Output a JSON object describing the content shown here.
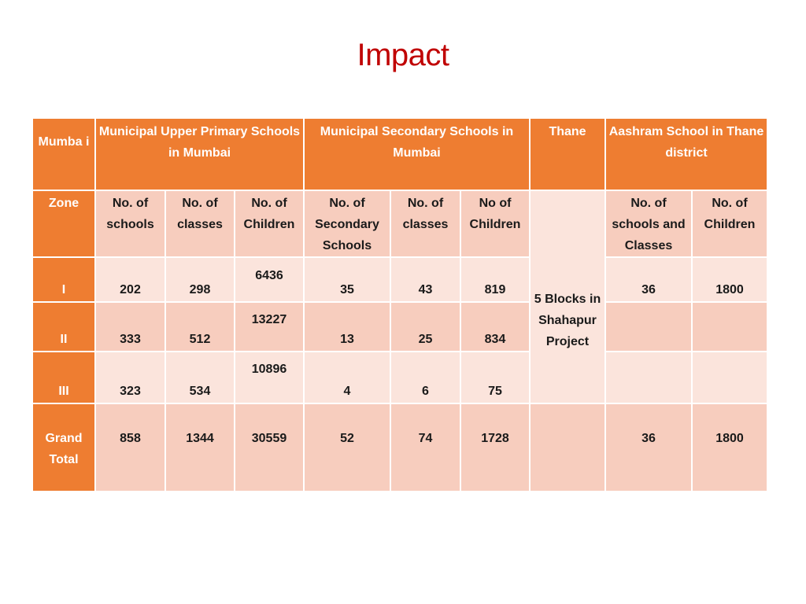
{
  "title": "Impact",
  "header": {
    "col0": "Mumba i",
    "group1": "Municipal Upper Primary Schools in  Mumbai",
    "group2": "Municipal Secondary  Schools in Mumbai",
    "group3": "Thane",
    "group4": "Aashram School in Thane district"
  },
  "subheader": {
    "zone": "Zone",
    "c1": "No. of schools",
    "c2": "No. of classes",
    "c3": "No. of Children",
    "c4": "No. of Secondary Schools",
    "c5": "No. of classes",
    "c6": "No of Children",
    "c7": "5 Blocks in Shahapur Project",
    "c8": "No. of schools and Classes",
    "c9": "No. of Children"
  },
  "rows": [
    {
      "zone": "I",
      "c1": "202",
      "c2": "298",
      "c3": "6436",
      "c4": "35",
      "c5": "43",
      "c6": "819",
      "c8": "36",
      "c9": "1800"
    },
    {
      "zone": "II",
      "c1": "333",
      "c2": "512",
      "c3": "13227",
      "c4": "13",
      "c5": "25",
      "c6": "834",
      "c8": "",
      "c9": ""
    },
    {
      "zone": "III",
      "c1": "323",
      "c2": "534",
      "c3": "10896",
      "c4": "4",
      "c5": "6",
      "c6": "75",
      "c8": "",
      "c9": ""
    }
  ],
  "grand_total": {
    "zone": "Grand Total",
    "c1": "858",
    "c2": "1344",
    "c3": "30559",
    "c4": "52",
    "c5": "74",
    "c6": "1728",
    "c7": "",
    "c8": "36",
    "c9": "1800"
  },
  "colors": {
    "title": "#c00000",
    "header": "#ee7d31",
    "row_dark": "#f7cdbe",
    "row_light": "#fbe4dc"
  }
}
